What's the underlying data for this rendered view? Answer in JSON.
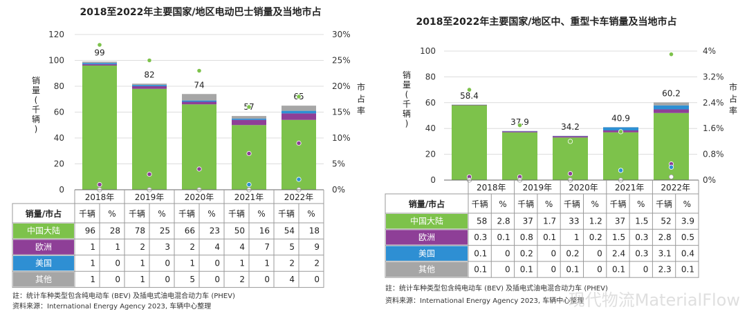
{
  "colors": {
    "china": "#7dc24b",
    "europe": "#8e3f97",
    "usa": "#2e8fd3",
    "other": "#a6a6a6",
    "table_border": "#999999",
    "grid": "#dcdcdc"
  },
  "watermark": "现代物流MaterialFlow",
  "chart_data": [
    {
      "type": "bar",
      "title": "2018至2022年主要国家/地区电动巴士销量及当地市占",
      "ylabel": "销量(千辆)",
      "y2label": "市占率",
      "ylim": [
        0,
        120
      ],
      "yticks": [
        "0",
        "20",
        "40",
        "60",
        "80",
        "100",
        "120"
      ],
      "y2lim": [
        0,
        30
      ],
      "y2ticks": [
        "0%",
        "5%",
        "10%",
        "15%",
        "20%",
        "25%",
        "30%"
      ],
      "categories": [
        "2018年",
        "2019年",
        "2020年",
        "2021年",
        "2022年"
      ],
      "totals": [
        "99",
        "82",
        "74",
        "57",
        "65"
      ],
      "total_values": [
        99,
        82,
        74,
        57,
        65
      ],
      "series": [
        {
          "name": "中国大陆",
          "sales": [
            96,
            78,
            66,
            50,
            54
          ],
          "share": [
            28,
            25,
            23,
            16,
            18
          ],
          "sales_text": [
            "96",
            "78",
            "66",
            "50",
            "54"
          ],
          "share_text": [
            "28",
            "25",
            "23",
            "16",
            "18"
          ]
        },
        {
          "name": "欧洲",
          "sales": [
            1,
            2,
            2,
            4,
            5
          ],
          "share": [
            1,
            3,
            4,
            7,
            9
          ],
          "sales_text": [
            "1",
            "2",
            "2",
            "4",
            "5"
          ],
          "share_text": [
            "1",
            "3",
            "4",
            "7",
            "9"
          ]
        },
        {
          "name": "美国",
          "sales": [
            1,
            1,
            1,
            1,
            2
          ],
          "share": [
            0,
            0,
            0,
            1,
            2
          ],
          "sales_text": [
            "1",
            "1",
            "1",
            "1",
            "2"
          ],
          "share_text": [
            "0",
            "0",
            "0",
            "1",
            "2"
          ]
        },
        {
          "name": "其他",
          "sales": [
            1,
            1,
            5,
            2,
            4
          ],
          "share": [
            0,
            0,
            0,
            0,
            0
          ],
          "sales_text": [
            "1",
            "1",
            "5",
            "2",
            "4"
          ],
          "share_text": [
            "0",
            "0",
            "0",
            "0",
            "0"
          ]
        }
      ],
      "table_header": "销量/市占",
      "unit_sales": "千辆",
      "unit_share": "%",
      "notes": [
        "註：统计车种类型包含纯电动车 (BEV) 及插电式油电混合动力车 (PHEV)",
        "资料来源：International Energy Agency 2023, 车辆中心整理"
      ]
    },
    {
      "type": "bar",
      "title": "2018至2022年主要国家/地区中、重型卡车销量及当地市占",
      "ylabel": "销量(千辆)",
      "y2label": "市占率",
      "ylim": [
        0,
        100
      ],
      "yticks": [
        "0",
        "20",
        "40",
        "60",
        "80",
        "100"
      ],
      "y2lim": [
        0,
        4
      ],
      "y2ticks": [
        "0%",
        "0.8%",
        "1.6%",
        "2.4%",
        "3.2%",
        "4%"
      ],
      "categories": [
        "2018年",
        "2019年",
        "2020年",
        "2021年",
        "2022年"
      ],
      "totals": [
        "58.4",
        "37.9",
        "34.2",
        "40.9",
        "60.2"
      ],
      "total_values": [
        58.4,
        37.9,
        34.2,
        40.9,
        60.2
      ],
      "series": [
        {
          "name": "中国大陆",
          "sales": [
            58,
            37,
            33,
            37,
            52
          ],
          "share": [
            2.8,
            1.7,
            1.2,
            1.5,
            3.9
          ],
          "sales_text": [
            "58",
            "37",
            "33",
            "37",
            "52"
          ],
          "share_text": [
            "2.8",
            "1.7",
            "1.2",
            "1.5",
            "3.9"
          ]
        },
        {
          "name": "欧洲",
          "sales": [
            0.3,
            0.8,
            1,
            1.5,
            2.8
          ],
          "share": [
            0.1,
            0.1,
            0.2,
            0.3,
            0.5
          ],
          "sales_text": [
            "0.3",
            "0.8",
            "1",
            "1.5",
            "2.8"
          ],
          "share_text": [
            "0.1",
            "0.1",
            "0.2",
            "0.3",
            "0.5"
          ]
        },
        {
          "name": "美国",
          "sales": [
            0.1,
            0.2,
            0.2,
            2.4,
            3.1
          ],
          "share": [
            0,
            0,
            0,
            0.3,
            0.4
          ],
          "sales_text": [
            "0.1",
            "0.2",
            "0.2",
            "2.4",
            "3.1"
          ],
          "share_text": [
            "0",
            "0",
            "0",
            "0.3",
            "0.4"
          ]
        },
        {
          "name": "其他",
          "sales": [
            0.1,
            0.1,
            0.1,
            0.1,
            2.3
          ],
          "share": [
            0,
            0,
            0,
            0,
            0.1
          ],
          "sales_text": [
            "0.1",
            "0.1",
            "0.1",
            "0.1",
            "2.3"
          ],
          "share_text": [
            "0",
            "0",
            "0",
            "0",
            "0.1"
          ]
        }
      ],
      "table_header": "销量/市占",
      "unit_sales": "千辆",
      "unit_share": "%",
      "notes": [
        "註：统计车种类型包含纯电动车 (BEV) 及插电式油电混合动力车 (PHEV)",
        "资料来源：International Energy Agency 2023, 车辆中心整理"
      ]
    }
  ]
}
